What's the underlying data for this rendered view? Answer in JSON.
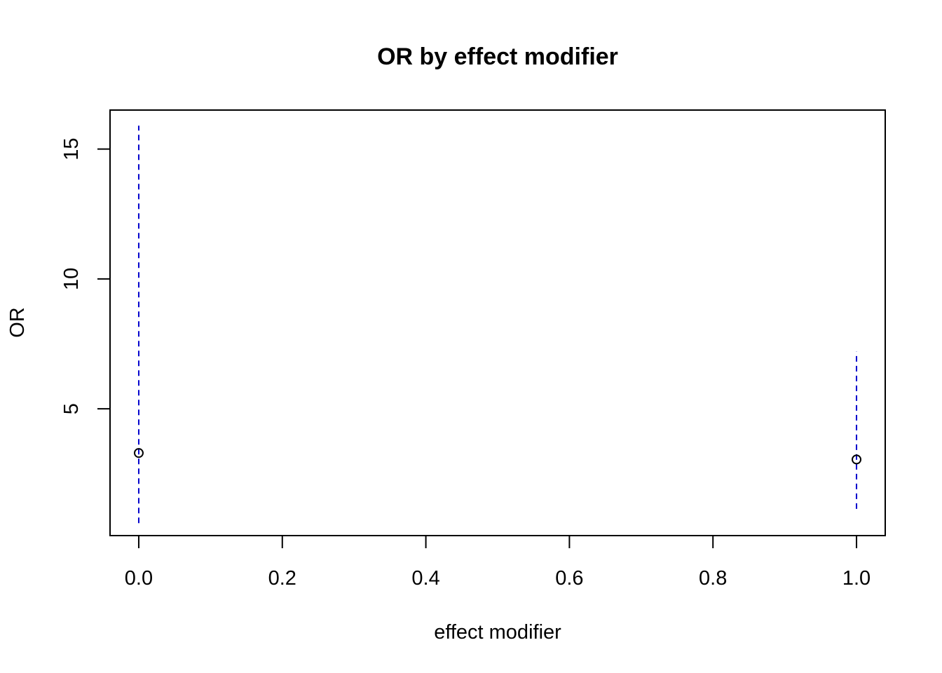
{
  "chart_data": {
    "type": "scatter",
    "title": "OR by effect modifier",
    "xlabel": "effect modifier",
    "ylabel": "OR",
    "xlim": [
      -0.04,
      1.04
    ],
    "ylim": [
      0.12,
      16.5
    ],
    "x_ticks": [
      0.0,
      0.2,
      0.4,
      0.6,
      0.8,
      1.0
    ],
    "x_tick_labels": [
      "0.0",
      "0.2",
      "0.4",
      "0.6",
      "0.8",
      "1.0"
    ],
    "y_ticks": [
      5,
      10,
      15
    ],
    "y_tick_labels": [
      "5",
      "10",
      "15"
    ],
    "grid": false,
    "legend": "none",
    "series": [
      {
        "marker": "open-circle",
        "point_color": "#000000",
        "interval_color": "#0000cc",
        "interval_style": "dashed",
        "points": [
          {
            "x": 0.0,
            "y": 3.3,
            "lower": 0.6,
            "upper": 15.9
          },
          {
            "x": 1.0,
            "y": 3.05,
            "lower": 1.15,
            "upper": 7.2
          }
        ]
      }
    ]
  }
}
